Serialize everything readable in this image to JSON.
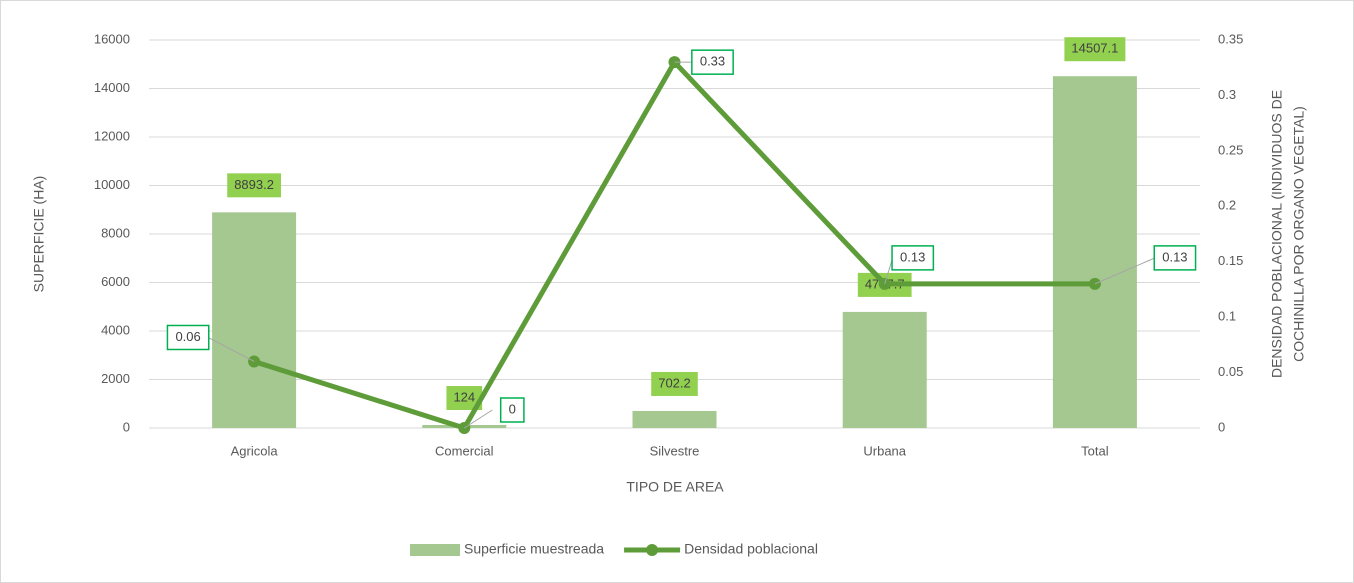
{
  "chart_data": {
    "type": "bar+line",
    "categories": [
      "Agricola",
      "Comercial",
      "Silvestre",
      "Urbana",
      "Total"
    ],
    "series": [
      {
        "name": "Superficie muestreada",
        "type": "bar",
        "color": "#a5c790",
        "values": [
          8893.2,
          124,
          702.2,
          4787.7,
          14507.1
        ]
      },
      {
        "name": "Densidad poblacional",
        "type": "line",
        "axis": "y2",
        "color": "#5e9c3a",
        "values": [
          0.06,
          0,
          0.33,
          0.13,
          0.13
        ]
      }
    ],
    "xlabel": "TIPO DE AREA",
    "ylabel": "SUPERFICIE (HA)",
    "y2label": [
      "DENSIDAD POBLACIONAL (INDIVIDUOS DE",
      "COCHINILLA POR ORGANO VEGETAL)"
    ],
    "ylim": [
      0,
      16000
    ],
    "yticks": [
      0,
      2000,
      4000,
      6000,
      8000,
      10000,
      12000,
      14000,
      16000
    ],
    "y2lim": [
      0,
      0.35
    ],
    "y2ticks": [
      0,
      0.05,
      0.1,
      0.15,
      0.2,
      0.25,
      0.3,
      0.35
    ],
    "grid": true,
    "legend": "bottom"
  }
}
